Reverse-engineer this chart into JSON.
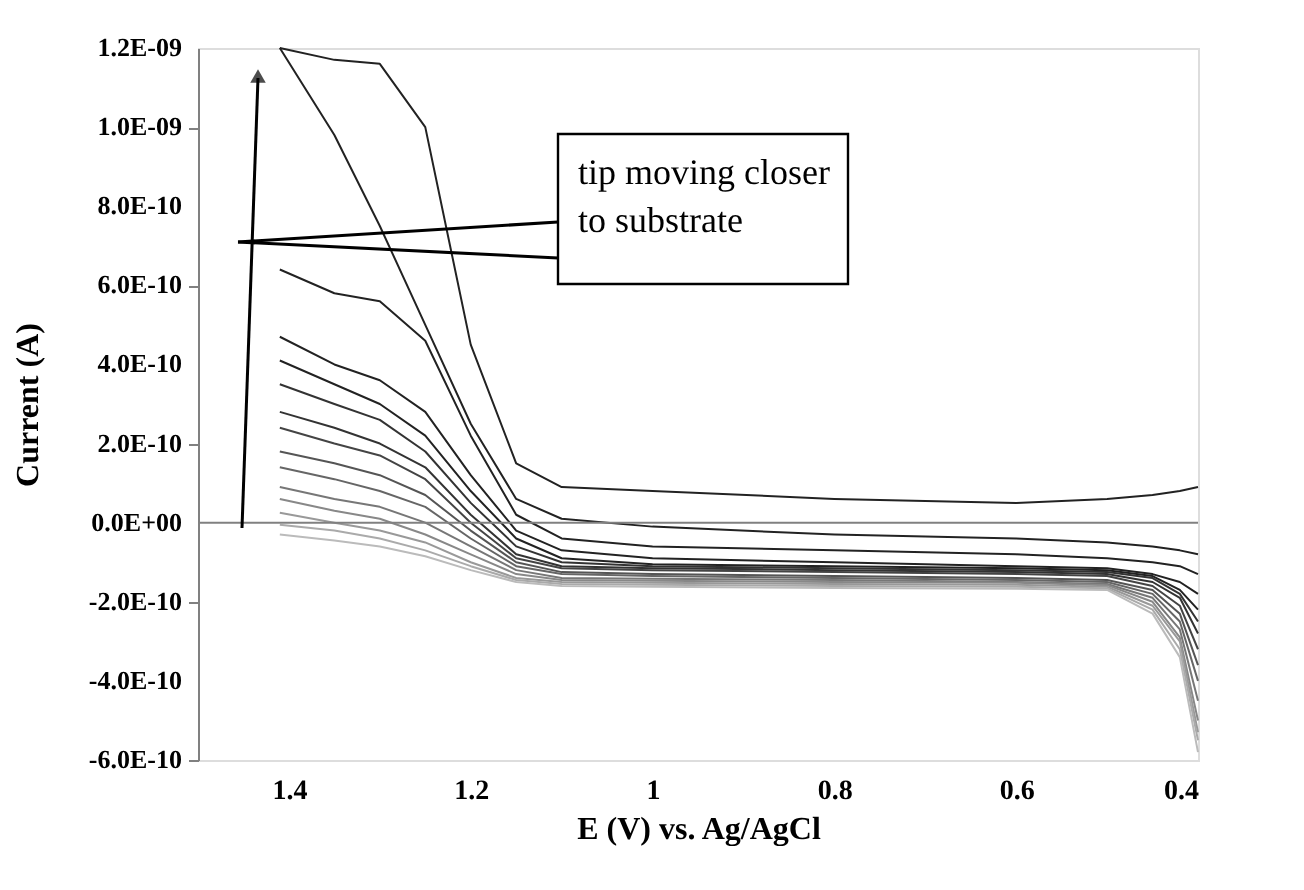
{
  "chart_data": {
    "type": "line",
    "xlabel": "E (V) vs. Ag/AgCl",
    "ylabel": "Current (A)",
    "x": [
      1.41,
      1.35,
      1.3,
      1.25,
      1.2,
      1.15,
      1.1,
      1.0,
      0.8,
      0.6,
      0.5,
      0.45,
      0.42,
      0.4
    ],
    "xlim": [
      1.5,
      0.4
    ],
    "xticks": [
      1.4,
      1.2,
      1,
      0.8,
      0.6,
      0.4
    ],
    "ylim": [
      -6e-10,
      1.2e-09
    ],
    "yticks": [
      {
        "value": 1.2e-09,
        "label": "1.2E-09"
      },
      {
        "value": 1e-09,
        "label": "1.0E-09"
      },
      {
        "value": 8e-10,
        "label": "8.0E-10"
      },
      {
        "value": 6e-10,
        "label": "6.0E-10"
      },
      {
        "value": 4e-10,
        "label": "4.0E-10"
      },
      {
        "value": 2e-10,
        "label": "2.0E-10"
      },
      {
        "value": 0,
        "label": "0.0E+00"
      },
      {
        "value": -2e-10,
        "label": "-2.0E-10"
      },
      {
        "value": -4e-10,
        "label": "-4.0E-10"
      },
      {
        "value": -6e-10,
        "label": "-6.0E-10"
      }
    ],
    "series": [
      {
        "color": "#222222",
        "values": [
          1.2e-09,
          1.17e-09,
          1.16e-09,
          1e-09,
          4.5e-10,
          1.5e-10,
          9e-11,
          8e-11,
          6e-11,
          5e-11,
          6e-11,
          7e-11,
          8e-11,
          9e-11
        ]
      },
      {
        "color": "#222222",
        "values": [
          1.2e-09,
          9.8e-10,
          7.5e-10,
          5e-10,
          2.5e-10,
          6e-11,
          1e-11,
          -1e-11,
          -3e-11,
          -4e-11,
          -5e-11,
          -6e-11,
          -7e-11,
          -8e-11
        ]
      },
      {
        "color": "#222222",
        "values": [
          6.4e-10,
          5.8e-10,
          5.6e-10,
          4.6e-10,
          2.2e-10,
          2e-11,
          -4e-11,
          -6e-11,
          -7e-11,
          -8e-11,
          -9e-11,
          -1e-10,
          -1.1e-10,
          -1.3e-10
        ]
      },
      {
        "color": "#222222",
        "values": [
          4.7e-10,
          4e-10,
          3.6e-10,
          2.8e-10,
          1.2e-10,
          -2e-11,
          -7e-11,
          -9e-11,
          -1e-10,
          -1.1e-10,
          -1.15e-10,
          -1.3e-10,
          -1.5e-10,
          -1.8e-10
        ]
      },
      {
        "color": "#222222",
        "values": [
          4.1e-10,
          3.5e-10,
          3e-10,
          2.2e-10,
          8e-11,
          -4e-11,
          -9e-11,
          -1.05e-10,
          -1.1e-10,
          -1.15e-10,
          -1.2e-10,
          -1.35e-10,
          -1.7e-10,
          -2.2e-10
        ]
      },
      {
        "color": "#333333",
        "values": [
          3.5e-10,
          3e-10,
          2.6e-10,
          1.8e-10,
          5e-11,
          -6e-11,
          -1e-10,
          -1.1e-10,
          -1.15e-10,
          -1.2e-10,
          -1.25e-10,
          -1.4e-10,
          -1.8e-10,
          -2.5e-10
        ]
      },
      {
        "color": "#333333",
        "values": [
          2.8e-10,
          2.4e-10,
          2e-10,
          1.4e-10,
          2e-11,
          -8e-11,
          -1.1e-10,
          -1.15e-10,
          -1.2e-10,
          -1.25e-10,
          -1.3e-10,
          -1.5e-10,
          -1.9e-10,
          -2.8e-10
        ]
      },
      {
        "color": "#444444",
        "values": [
          2.4e-10,
          2e-10,
          1.7e-10,
          1.1e-10,
          0,
          -9e-11,
          -1.15e-10,
          -1.2e-10,
          -1.25e-10,
          -1.3e-10,
          -1.35e-10,
          -1.6e-10,
          -2.1e-10,
          -3.2e-10
        ]
      },
      {
        "color": "#555555",
        "values": [
          1.8e-10,
          1.5e-10,
          1.2e-10,
          7e-11,
          -2e-11,
          -1e-10,
          -1.25e-10,
          -1.3e-10,
          -1.35e-10,
          -1.4e-10,
          -1.45e-10,
          -1.7e-10,
          -2.3e-10,
          -3.6e-10
        ]
      },
      {
        "color": "#666666",
        "values": [
          1.4e-10,
          1.1e-10,
          8e-11,
          4e-11,
          -4e-11,
          -1.1e-10,
          -1.3e-10,
          -1.35e-10,
          -1.4e-10,
          -1.45e-10,
          -1.5e-10,
          -1.8e-10,
          -2.5e-10,
          -4e-10
        ]
      },
      {
        "color": "#777777",
        "values": [
          9e-11,
          6e-11,
          4e-11,
          0,
          -6e-11,
          -1.2e-10,
          -1.4e-10,
          -1.42e-10,
          -1.45e-10,
          -1.5e-10,
          -1.55e-10,
          -1.9e-10,
          -2.7e-10,
          -4.5e-10
        ]
      },
      {
        "color": "#888888",
        "values": [
          6e-11,
          3e-11,
          1e-11,
          -3e-11,
          -8e-11,
          -1.3e-10,
          -1.45e-10,
          -1.47e-10,
          -1.5e-10,
          -1.52e-10,
          -1.58e-10,
          -2e-10,
          -2.9e-10,
          -5e-10
        ]
      },
      {
        "color": "#999999",
        "values": [
          2.5e-11,
          0,
          -2e-11,
          -5e-11,
          -1e-10,
          -1.4e-10,
          -1.5e-10,
          -1.52e-10,
          -1.55e-10,
          -1.57e-10,
          -1.62e-10,
          -2.1e-10,
          -3e-10,
          -5.3e-10
        ]
      },
      {
        "color": "#aaaaaa",
        "values": [
          -5e-12,
          -2e-11,
          -4e-11,
          -7e-11,
          -1.1e-10,
          -1.45e-10,
          -1.55e-10,
          -1.57e-10,
          -1.6e-10,
          -1.62e-10,
          -1.66e-10,
          -2.2e-10,
          -3.2e-10,
          -5.5e-10
        ]
      },
      {
        "color": "#bbbbbb",
        "values": [
          -3e-11,
          -4.5e-11,
          -6e-11,
          -8.5e-11,
          -1.2e-10,
          -1.5e-10,
          -1.6e-10,
          -1.62e-10,
          -1.65e-10,
          -1.67e-10,
          -1.7e-10,
          -2.3e-10,
          -3.4e-10,
          -5.8e-10
        ]
      }
    ],
    "ref_lines": [
      {
        "axis": "y",
        "value": 0,
        "color": "#808080"
      }
    ],
    "annotations": [
      "tip moving closer\nto substrate"
    ],
    "grid": false,
    "legend": false
  }
}
